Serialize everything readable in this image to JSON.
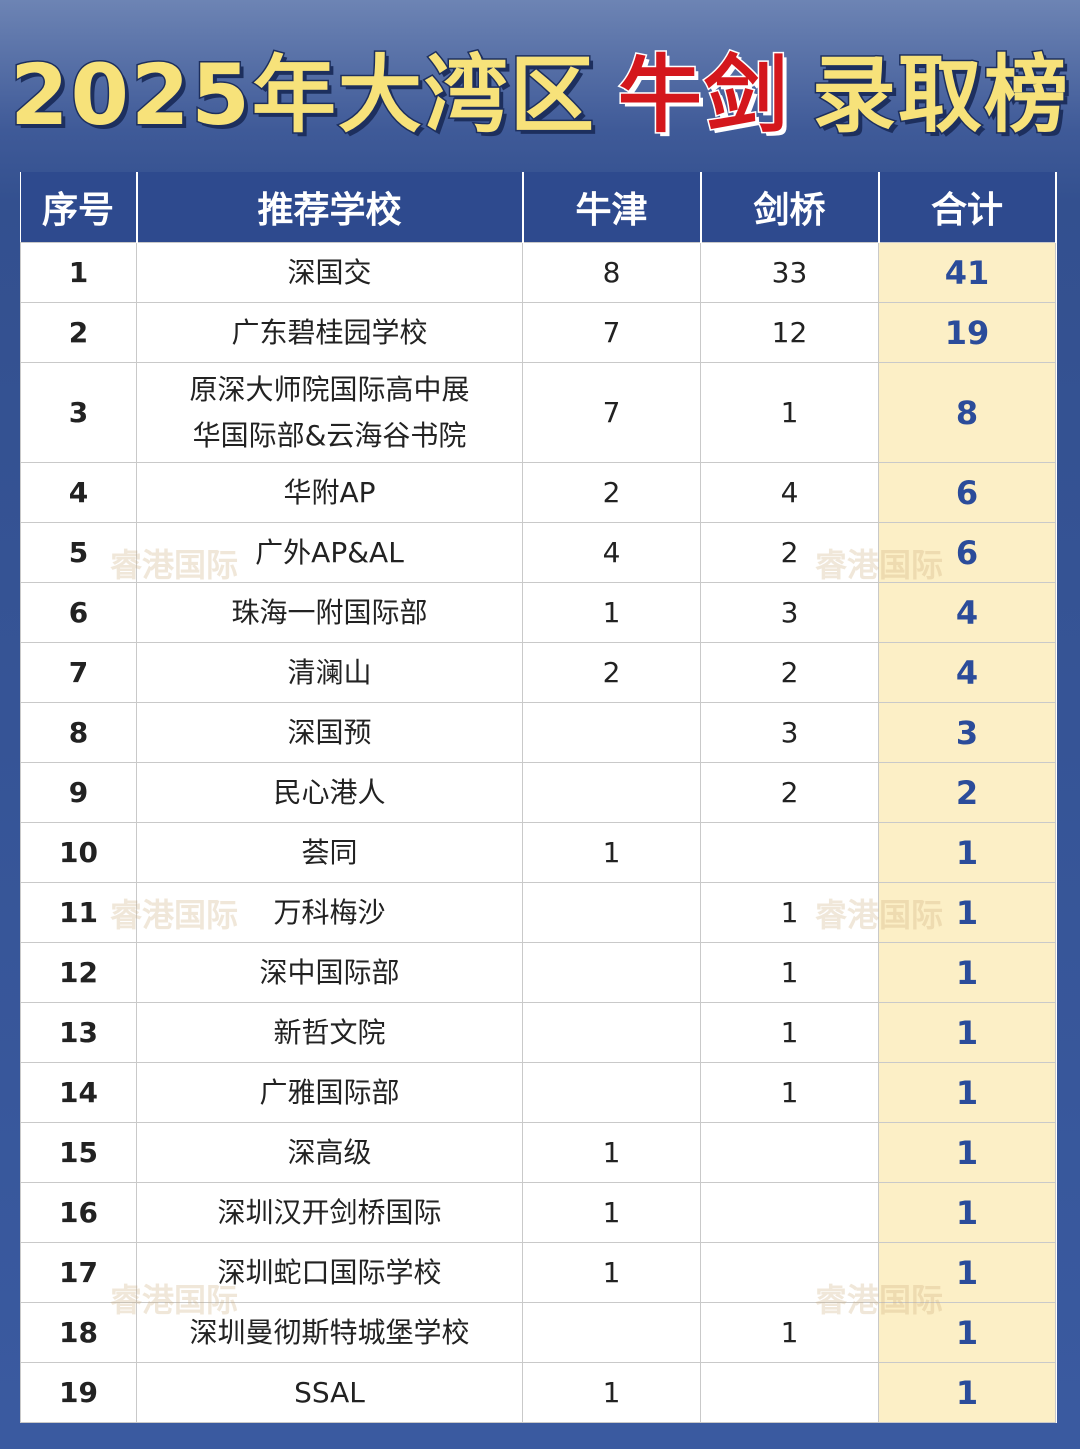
{
  "header": {
    "title_lead": "2025年大湾区",
    "title_highlight": "牛剑",
    "title_tail": "录取榜"
  },
  "watermark": "睿港国际",
  "table": {
    "columns": [
      "序号",
      "推荐学校",
      "牛津",
      "剑桥",
      "合计"
    ],
    "rows": [
      [
        1,
        [
          "深国交"
        ],
        8,
        33,
        41
      ],
      [
        2,
        [
          "广东碧桂园学校"
        ],
        7,
        12,
        19
      ],
      [
        3,
        [
          "原深大师院国际高中展",
          "华国际部&云海谷书院"
        ],
        7,
        1,
        8
      ],
      [
        4,
        [
          "华附AP"
        ],
        2,
        4,
        6
      ],
      [
        5,
        [
          "广外AP&AL"
        ],
        4,
        2,
        6
      ],
      [
        6,
        [
          "珠海一附国际部"
        ],
        1,
        3,
        4
      ],
      [
        7,
        [
          "清澜山"
        ],
        2,
        2,
        4
      ],
      [
        8,
        [
          "深国预"
        ],
        null,
        3,
        3
      ],
      [
        9,
        [
          "民心港人"
        ],
        null,
        2,
        2
      ],
      [
        10,
        [
          "荟同"
        ],
        1,
        null,
        1
      ],
      [
        11,
        [
          "万科梅沙"
        ],
        null,
        1,
        1
      ],
      [
        12,
        [
          "深中国际部"
        ],
        null,
        1,
        1
      ],
      [
        13,
        [
          "新哲文院"
        ],
        null,
        1,
        1
      ],
      [
        14,
        [
          "广雅国际部"
        ],
        null,
        1,
        1
      ],
      [
        15,
        [
          "深高级"
        ],
        1,
        null,
        1
      ],
      [
        16,
        [
          "深圳汉开剑桥国际"
        ],
        1,
        null,
        1
      ],
      [
        17,
        [
          "深圳蛇口国际学校"
        ],
        1,
        null,
        1
      ],
      [
        18,
        [
          "深圳曼彻斯特城堡学校"
        ],
        null,
        1,
        1
      ],
      [
        19,
        [
          "SSAL"
        ],
        1,
        null,
        1
      ]
    ]
  }
}
